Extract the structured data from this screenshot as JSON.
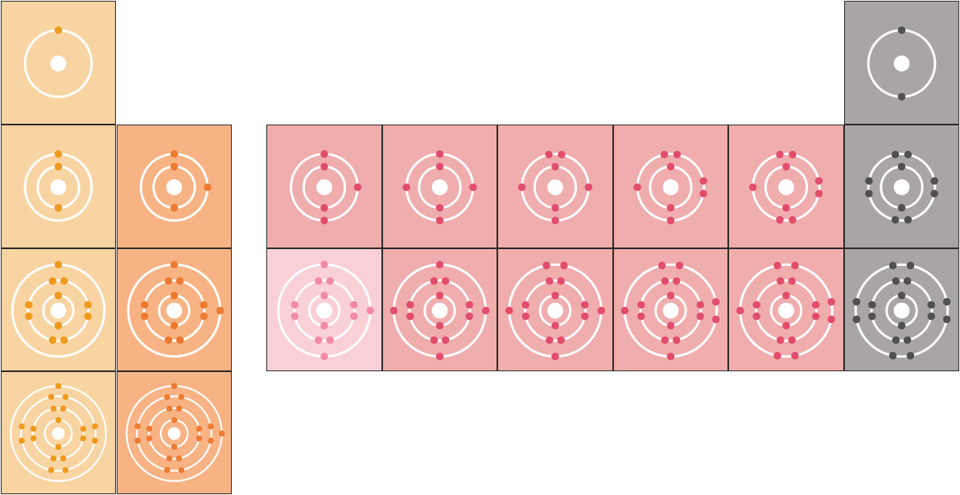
{
  "diagram": {
    "colors": {
      "group1_bg": "#f9d4a3",
      "group1_dot": "#f09a1b",
      "group2_bg": "#f8b384",
      "group2_dot": "#ee7a30",
      "pblock_bg": "#f0adad",
      "pblock_dot": "#e24d6b",
      "pblock_light_bg": "#fad0d7",
      "pblock_light_dot": "#f28aa5",
      "noble_bg": "#a9a5a5",
      "noble_dot": "#505050",
      "shell": "#ffffff"
    },
    "cells": [
      {
        "name": "cell-h",
        "col": 0,
        "row": 0,
        "theme": "group1",
        "shells": [
          1
        ]
      },
      {
        "name": "cell-li",
        "col": 0,
        "row": 1,
        "theme": "group1",
        "shells": [
          2,
          1
        ]
      },
      {
        "name": "cell-na",
        "col": 0,
        "row": 2,
        "theme": "group1",
        "shells": [
          2,
          8,
          1
        ]
      },
      {
        "name": "cell-k",
        "col": 0,
        "row": 3,
        "theme": "group1",
        "shells": [
          2,
          8,
          8,
          1
        ]
      },
      {
        "name": "cell-be",
        "col": 1,
        "row": 1,
        "theme": "group2",
        "shells": [
          2,
          2
        ]
      },
      {
        "name": "cell-mg",
        "col": 1,
        "row": 2,
        "theme": "group2",
        "shells": [
          2,
          8,
          2
        ]
      },
      {
        "name": "cell-ca",
        "col": 1,
        "row": 3,
        "theme": "group2",
        "shells": [
          2,
          8,
          8,
          2
        ]
      },
      {
        "name": "cell-b",
        "col": 2,
        "row": 1,
        "theme": "pblock",
        "shells": [
          2,
          3
        ]
      },
      {
        "name": "cell-c",
        "col": 3,
        "row": 1,
        "theme": "pblock",
        "shells": [
          2,
          4
        ]
      },
      {
        "name": "cell-n",
        "col": 4,
        "row": 1,
        "theme": "pblock",
        "shells": [
          2,
          5
        ]
      },
      {
        "name": "cell-o",
        "col": 5,
        "row": 1,
        "theme": "pblock",
        "shells": [
          2,
          6
        ]
      },
      {
        "name": "cell-f",
        "col": 6,
        "row": 1,
        "theme": "pblock",
        "shells": [
          2,
          7
        ]
      },
      {
        "name": "cell-al",
        "col": 2,
        "row": 2,
        "theme": "pblock_light",
        "shells": [
          2,
          8,
          3
        ]
      },
      {
        "name": "cell-si",
        "col": 3,
        "row": 2,
        "theme": "pblock",
        "shells": [
          2,
          8,
          4
        ]
      },
      {
        "name": "cell-p",
        "col": 4,
        "row": 2,
        "theme": "pblock",
        "shells": [
          2,
          8,
          5
        ]
      },
      {
        "name": "cell-s",
        "col": 5,
        "row": 2,
        "theme": "pblock",
        "shells": [
          2,
          8,
          6
        ]
      },
      {
        "name": "cell-cl",
        "col": 6,
        "row": 2,
        "theme": "pblock",
        "shells": [
          2,
          8,
          7
        ]
      },
      {
        "name": "cell-he",
        "col": 7,
        "row": 0,
        "theme": "noble",
        "shells": [
          2
        ]
      },
      {
        "name": "cell-ne",
        "col": 7,
        "row": 1,
        "theme": "noble",
        "shells": [
          2,
          8
        ]
      },
      {
        "name": "cell-ar",
        "col": 7,
        "row": 2,
        "theme": "noble",
        "shells": [
          2,
          8,
          8
        ]
      }
    ]
  }
}
